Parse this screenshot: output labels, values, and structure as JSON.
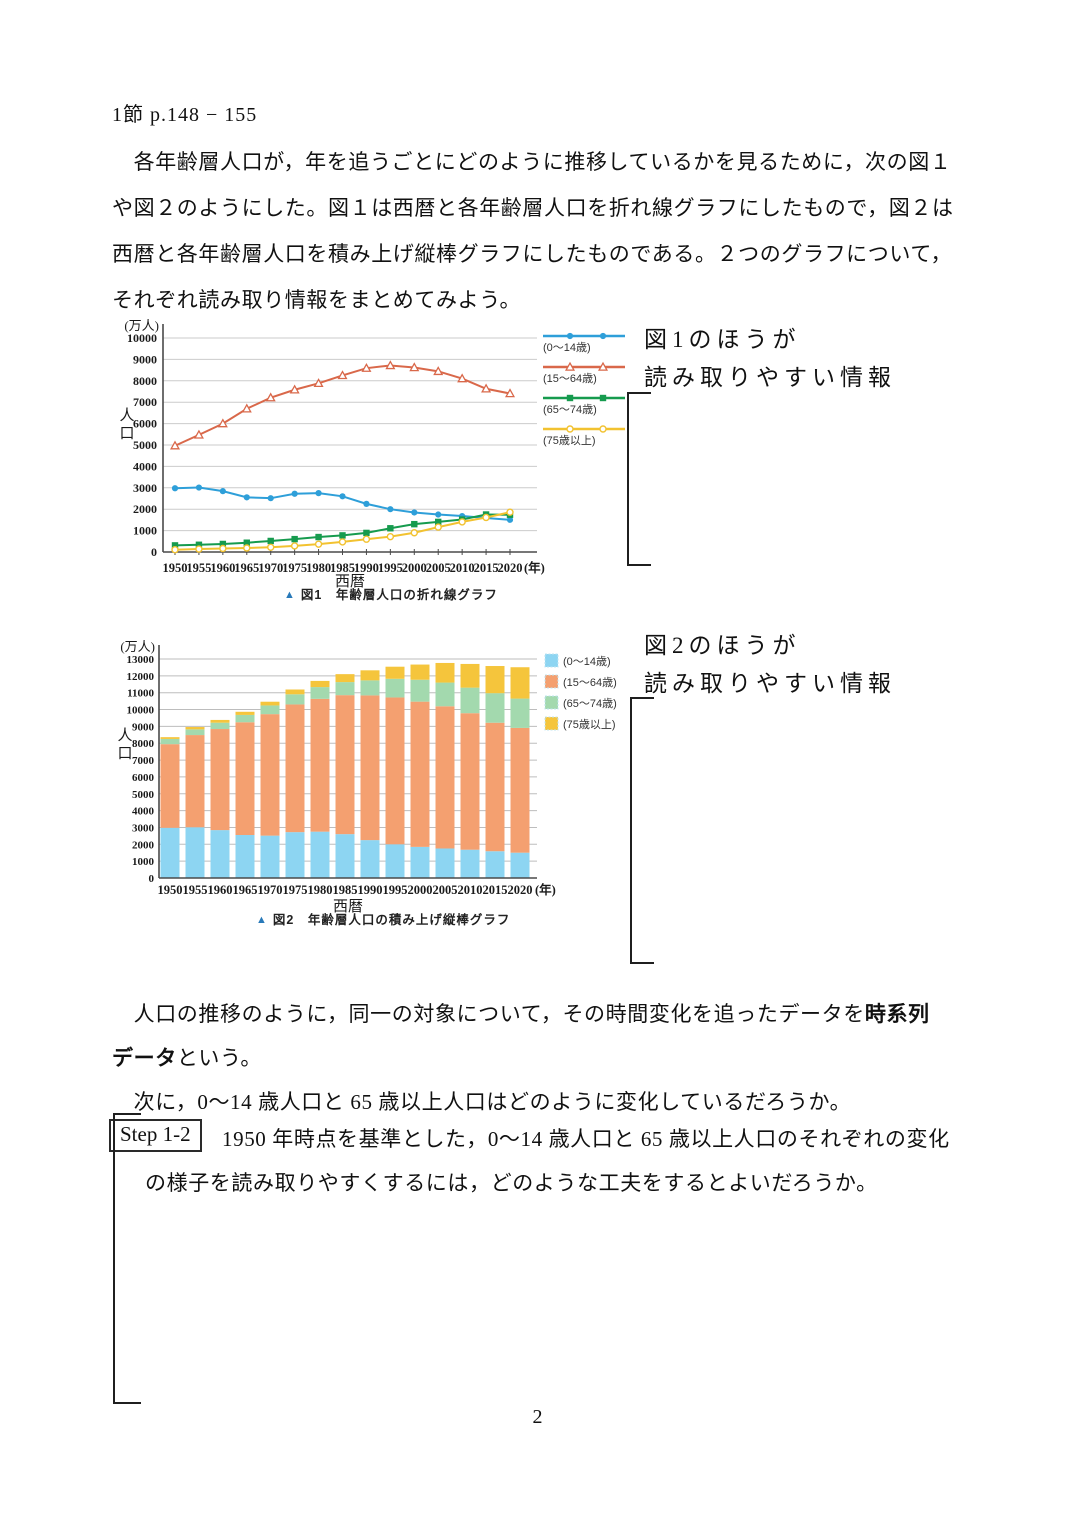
{
  "header": {
    "title": "1節 p.148 − 155"
  },
  "intro": {
    "lines": [
      "　各年齢層人口が，年を追うごとにどのように推移しているかを見るために，次の図１",
      "や図２のようにした。図１は西暦と各年齢層人口を折れ線グラフにしたもので，図２は",
      "西暦と各年齢層人口を積み上げ縦棒グラフにしたものである。２つのグラフについて，",
      "それぞれ読み取り情報をまとめてみよう。"
    ]
  },
  "fig1": {
    "note_line1": "図1のほうが",
    "note_line2": "読み取りやすい情報",
    "caption_marker": "▲",
    "caption": "図1　年齢層人口の折れ線グラフ"
  },
  "fig2": {
    "note_line1": "図2のほうが",
    "note_line2": "読み取りやすい情報",
    "caption_marker": "▲",
    "caption": "図2　年齢層人口の積み上げ縦棒グラフ"
  },
  "body": {
    "l1a": "　人口の推移のように，同一の対象について，その時間変化を追ったデータを",
    "l1b": "時系列",
    "l2a": "データ",
    "l2b": "という。",
    "l3": "　次に，0〜14 歳人口と 65 歳以上人口はどのように変化しているだろうか。"
  },
  "step": {
    "badge": "Step 1-2",
    "line1": "1950 年時点を基準とした，0〜14 歳人口と 65 歳以上人口のそれぞれの変化",
    "line2": "の様子を読み取りやすくするには，どのような工夫をするとよいだろうか。"
  },
  "page": {
    "number": "2"
  },
  "chart_data": [
    {
      "type": "line",
      "title": "図1 年齢層人口の折れ線グラフ",
      "unit": "(万人)",
      "ylabel": "人口",
      "xlabel": "西暦",
      "x_suffix": "(年)",
      "categories": [
        "1950",
        "1955",
        "1960",
        "1965",
        "1970",
        "1975",
        "1980",
        "1985",
        "1990",
        "1995",
        "2000",
        "2005",
        "2010",
        "2015",
        "2020"
      ],
      "ylim": [
        0,
        10000
      ],
      "ytick": 1000,
      "grid": true,
      "legend_position": "right",
      "series": [
        {
          "name": "(0〜14歳)",
          "color": "#2e9fd9",
          "marker": "circle",
          "values": [
            2979,
            3012,
            2843,
            2553,
            2515,
            2722,
            2751,
            2603,
            2249,
            2001,
            1847,
            1752,
            1680,
            1589,
            1503
          ]
        },
        {
          "name": "(15〜64歳)",
          "color": "#d9684a",
          "marker": "triangle-open",
          "values": [
            4966,
            5473,
            6000,
            6693,
            7212,
            7581,
            7883,
            8251,
            8590,
            8716,
            8622,
            8442,
            8103,
            7629,
            7406
          ]
        },
        {
          "name": "(65〜74歳)",
          "color": "#169b4e",
          "marker": "square",
          "values": [
            309,
            338,
            376,
            434,
            516,
            602,
            699,
            776,
            892,
            1109,
            1301,
            1407,
            1517,
            1752,
            1742
          ]
        },
        {
          "name": "(75歳以上)",
          "color": "#f2c230",
          "marker": "circle-open",
          "values": [
            106,
            139,
            164,
            187,
            221,
            284,
            366,
            471,
            597,
            717,
            900,
            1164,
            1407,
            1613,
            1860
          ]
        }
      ]
    },
    {
      "type": "stacked-bar",
      "title": "図2 年齢層人口の積み上げ縦棒グラフ",
      "unit": "(万人)",
      "ylabel": "人口",
      "xlabel": "西暦",
      "x_suffix": "(年)",
      "categories": [
        "1950",
        "1955",
        "1960",
        "1965",
        "1970",
        "1975",
        "1980",
        "1985",
        "1990",
        "1995",
        "2000",
        "2005",
        "2010",
        "2015",
        "2020"
      ],
      "ylim": [
        0,
        13000
      ],
      "ytick": 1000,
      "grid": true,
      "legend_position": "right",
      "series": [
        {
          "name": "(0〜14歳)",
          "color": "#8dd5f2",
          "values": [
            2979,
            3012,
            2843,
            2553,
            2515,
            2722,
            2751,
            2603,
            2249,
            2001,
            1847,
            1752,
            1680,
            1589,
            1503
          ]
        },
        {
          "name": "(15〜64歳)",
          "color": "#f4a070",
          "values": [
            4966,
            5473,
            6000,
            6693,
            7212,
            7581,
            7883,
            8251,
            8590,
            8716,
            8622,
            8442,
            8103,
            7629,
            7406
          ]
        },
        {
          "name": "(65〜74歳)",
          "color": "#a3d9ae",
          "values": [
            309,
            338,
            376,
            434,
            516,
            602,
            699,
            776,
            892,
            1109,
            1301,
            1407,
            1517,
            1752,
            1742
          ]
        },
        {
          "name": "(75歳以上)",
          "color": "#f5c53c",
          "values": [
            106,
            139,
            164,
            187,
            221,
            284,
            366,
            471,
            597,
            717,
            900,
            1164,
            1407,
            1613,
            1860
          ]
        }
      ]
    }
  ]
}
